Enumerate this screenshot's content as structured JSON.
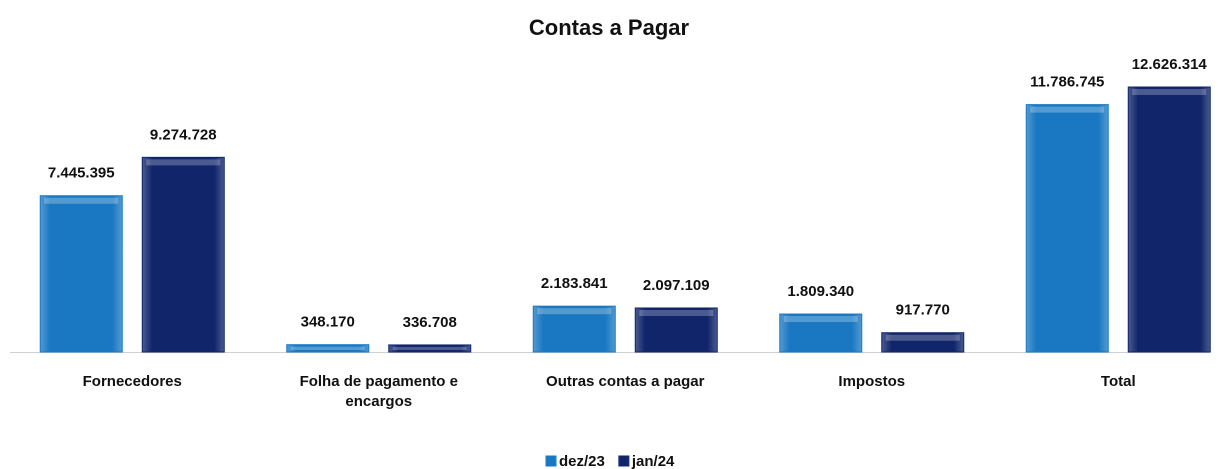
{
  "chart_data": {
    "type": "bar",
    "title": "Contas a Pagar",
    "categories": [
      "Fornecedores",
      "Folha de pagamento e encargos",
      "Outras contas a pagar",
      "Impostos",
      "Total"
    ],
    "series": [
      {
        "name": "dez/23",
        "color": "#1a78c2",
        "values": [
          7445395,
          348170,
          2183841,
          1809340,
          11786745
        ],
        "value_labels": [
          "7.445.395",
          "348.170",
          "2.183.841",
          "1.809.340",
          "11.786.745"
        ]
      },
      {
        "name": "jan/24",
        "color": "#10256a",
        "values": [
          9274728,
          336708,
          2097109,
          917770,
          12626314
        ],
        "value_labels": [
          "9.274.728",
          "336.708",
          "2.097.109",
          "917.770",
          "12.626.314"
        ]
      }
    ],
    "legend": "bottom"
  }
}
